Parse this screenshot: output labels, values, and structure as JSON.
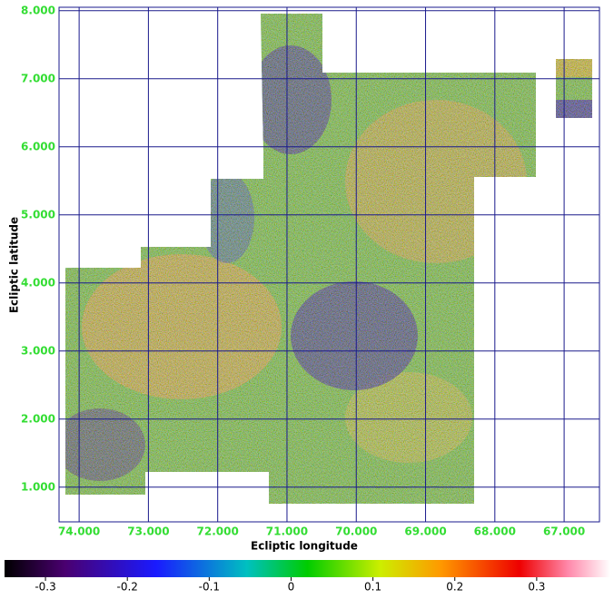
{
  "chart_data": {
    "type": "image",
    "xlabel": "Ecliptic longitude",
    "ylabel": "Ecliptic latitude",
    "xlim": [
      74.29,
      66.49
    ],
    "ylim": [
      0.49,
      8.05
    ],
    "xticks": [
      {
        "value": 74,
        "label": "74.000"
      },
      {
        "value": 73,
        "label": "73.000"
      },
      {
        "value": 72,
        "label": "72.000"
      },
      {
        "value": 71,
        "label": "71.000"
      },
      {
        "value": 70,
        "label": "70.000"
      },
      {
        "value": 69,
        "label": "69.000"
      },
      {
        "value": 68,
        "label": "68.000"
      },
      {
        "value": 67,
        "label": "67.000"
      }
    ],
    "yticks": [
      {
        "value": 1,
        "label": "1.000"
      },
      {
        "value": 2,
        "label": "2.000"
      },
      {
        "value": 3,
        "label": "3.000"
      },
      {
        "value": 4,
        "label": "4.000"
      },
      {
        "value": 5,
        "label": "5.000"
      },
      {
        "value": 6,
        "label": "6.000"
      },
      {
        "value": 7,
        "label": "7.000"
      },
      {
        "value": 8,
        "label": "8.000"
      }
    ],
    "grid": true,
    "grid_color": "#1a1a8c",
    "tick_color": "#33dd33",
    "colorbar": {
      "lim": [
        -0.35,
        0.39
      ],
      "ticks": [
        -0.3,
        -0.2,
        -0.1,
        0,
        0.1,
        0.2,
        0.3
      ]
    }
  }
}
